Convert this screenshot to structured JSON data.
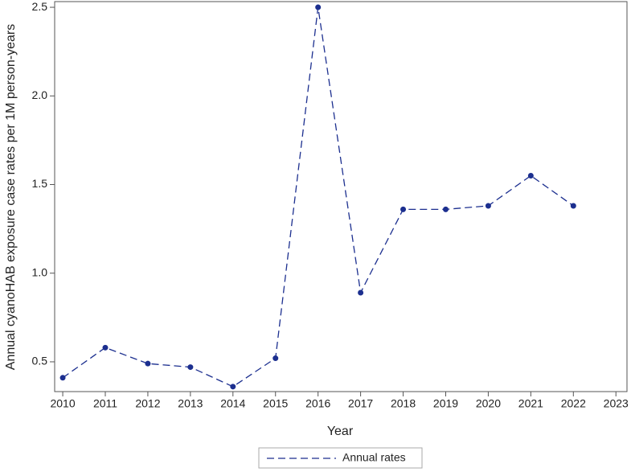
{
  "chart_data": {
    "type": "line",
    "x_label": "Year",
    "y_label": "Annual cyanoHAB exposure case rates per 1M person-years",
    "x": [
      2010,
      2011,
      2012,
      2013,
      2014,
      2015,
      2016,
      2017,
      2018,
      2019,
      2020,
      2021,
      2022
    ],
    "series": [
      {
        "name": "Annual rates",
        "color": "#1c2f8f",
        "values": [
          0.41,
          0.58,
          0.49,
          0.47,
          0.36,
          0.52,
          2.5,
          0.89,
          1.36,
          1.36,
          1.38,
          1.55,
          1.38
        ]
      }
    ],
    "xlim": [
      2009.81,
      2023.26
    ],
    "xticks": [
      2010,
      2011,
      2012,
      2013,
      2014,
      2015,
      2016,
      2017,
      2018,
      2019,
      2020,
      2021,
      2022,
      2023
    ],
    "ylim": [
      0.332,
      2.532
    ],
    "yticks": [
      0.5,
      {
        "value": 1.0,
        "label": "1.0"
      },
      1.5,
      {
        "value": 2.0,
        "label": "2.0"
      },
      2.5
    ],
    "grid": false,
    "legend": "bottom"
  }
}
